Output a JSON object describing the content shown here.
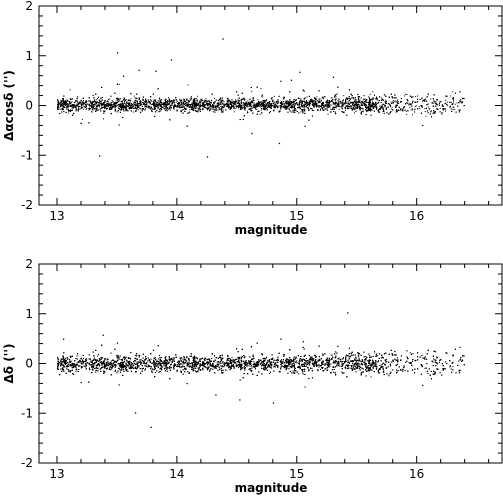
{
  "chart_data": [
    {
      "type": "scatter",
      "title": "",
      "xlabel": "magnitude",
      "ylabel": "Δαcosδ ('')",
      "xlim": [
        12.85,
        16.72
      ],
      "ylim": [
        -2,
        2
      ],
      "x_ticks": [
        "13",
        "14",
        "15",
        "16"
      ],
      "y_ticks": [
        "-2",
        "-1",
        "0",
        "1",
        "2"
      ],
      "grid": false,
      "distribution": {
        "x_range": [
          13.0,
          16.4
        ],
        "core_y_center": 0.02,
        "core_y_halfwidth": 0.12,
        "density_decreases_above_mag": 15.6
      },
      "outliers": [
        {
          "x": 13.5,
          "y": 1.07
        },
        {
          "x": 14.38,
          "y": 1.35
        },
        {
          "x": 13.68,
          "y": 0.72
        },
        {
          "x": 13.95,
          "y": 0.93
        },
        {
          "x": 13.82,
          "y": 0.7
        },
        {
          "x": 14.95,
          "y": 0.52
        },
        {
          "x": 15.02,
          "y": 0.68
        },
        {
          "x": 13.35,
          "y": -1.0
        },
        {
          "x": 14.25,
          "y": -1.02
        },
        {
          "x": 14.62,
          "y": -0.55
        },
        {
          "x": 14.85,
          "y": -0.75
        },
        {
          "x": 13.55,
          "y": 0.6
        },
        {
          "x": 15.3,
          "y": 0.58
        }
      ]
    },
    {
      "type": "scatter",
      "title": "",
      "xlabel": "magnitude",
      "ylabel": "Δδ ('')",
      "xlim": [
        12.85,
        16.72
      ],
      "ylim": [
        -2,
        2
      ],
      "x_ticks": [
        "13",
        "14",
        "15",
        "16"
      ],
      "y_ticks": [
        "-2",
        "-1",
        "0",
        "1",
        "2"
      ],
      "grid": false,
      "distribution": {
        "x_range": [
          13.0,
          16.4
        ],
        "core_y_center": 0.0,
        "core_y_halfwidth": 0.15,
        "density_decreases_above_mag": 15.6
      },
      "outliers": [
        {
          "x": 15.42,
          "y": 1.03
        },
        {
          "x": 13.38,
          "y": 0.58
        },
        {
          "x": 13.65,
          "y": -0.98
        },
        {
          "x": 13.78,
          "y": -1.27
        },
        {
          "x": 14.52,
          "y": -0.72
        },
        {
          "x": 14.8,
          "y": -0.78
        },
        {
          "x": 14.32,
          "y": -0.62
        },
        {
          "x": 15.05,
          "y": 0.45
        },
        {
          "x": 16.15,
          "y": 0.25
        },
        {
          "x": 13.05,
          "y": 0.5
        }
      ]
    }
  ]
}
